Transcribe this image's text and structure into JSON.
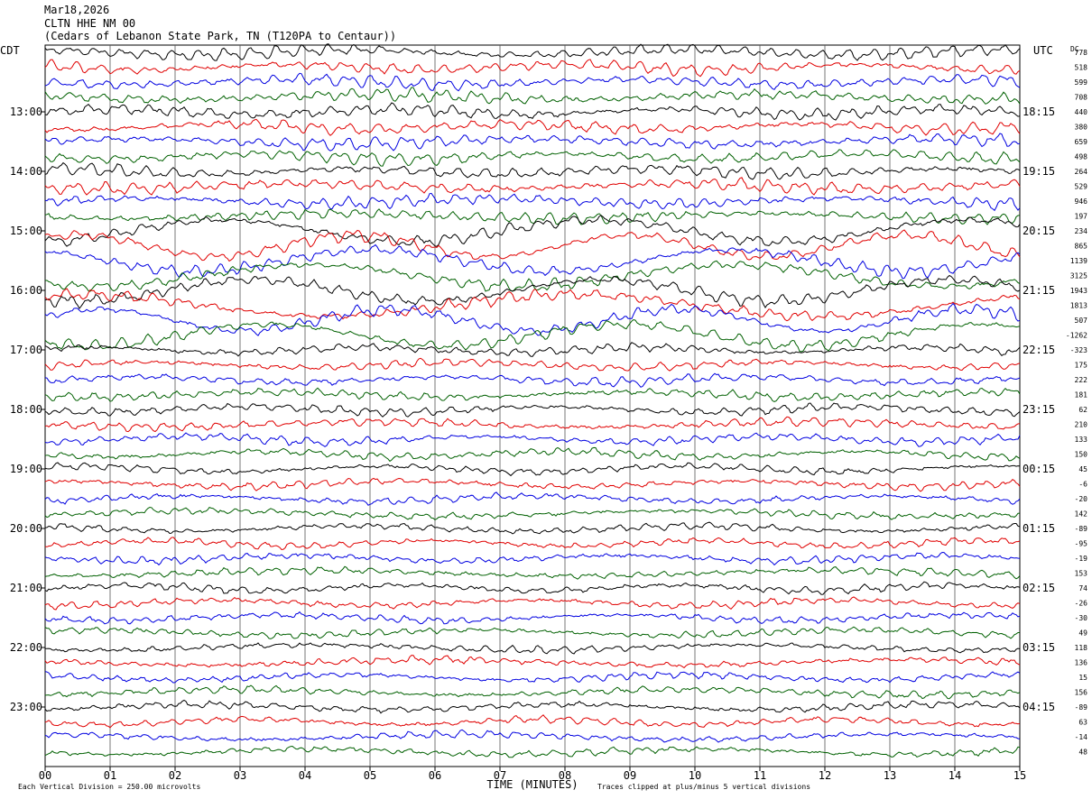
{
  "header": {
    "date": "Mar18,2026",
    "station": "CLTN HHE NM 00",
    "location": "(Cedars of Lebanon State Park, TN (T120PA to Centaur))"
  },
  "chart_data": {
    "type": "line",
    "left_zone_label": "CDT",
    "right_zone_label": "UTC",
    "right_column_header": "DC",
    "xlabel": "TIME (MINUTES)",
    "x_ticks": [
      "00",
      "01",
      "02",
      "03",
      "04",
      "05",
      "06",
      "07",
      "08",
      "09",
      "10",
      "11",
      "12",
      "13",
      "14",
      "15"
    ],
    "xlim": [
      0,
      15
    ],
    "left_hour_labels": [
      "13:00",
      "14:00",
      "15:00",
      "16:00",
      "17:00",
      "18:00",
      "19:00",
      "20:00",
      "21:00",
      "22:00",
      "23:00"
    ],
    "right_hour_labels": [
      "18:15",
      "19:15",
      "20:15",
      "21:15",
      "22:15",
      "23:15",
      "00:15",
      "01:15",
      "02:15",
      "03:15",
      "04:15"
    ],
    "dc_offsets": [
      "778",
      "518",
      "599",
      "708",
      "440",
      "380",
      "659",
      "498",
      "264",
      "529",
      "946",
      "197",
      "234",
      "865",
      "1139",
      "3125",
      "1943",
      "1813",
      "507",
      "-1262",
      "-323",
      "175",
      "222",
      "181",
      "62",
      "210",
      "133",
      "150",
      "45",
      "-6",
      "-20",
      "142",
      "-89",
      "-95",
      "-19",
      "153",
      "74",
      "-26",
      "-30",
      "49",
      "118",
      "136",
      "15",
      "156",
      "-89",
      "63",
      "-14",
      "48"
    ],
    "trace_colors": [
      "#000000",
      "#e00000",
      "#0000e0",
      "#006000"
    ],
    "footer_left": "Each Vertical Division = 250.00 microvolts",
    "footer_right": "Traces clipped at plus/minus 5 vertical divisions"
  }
}
